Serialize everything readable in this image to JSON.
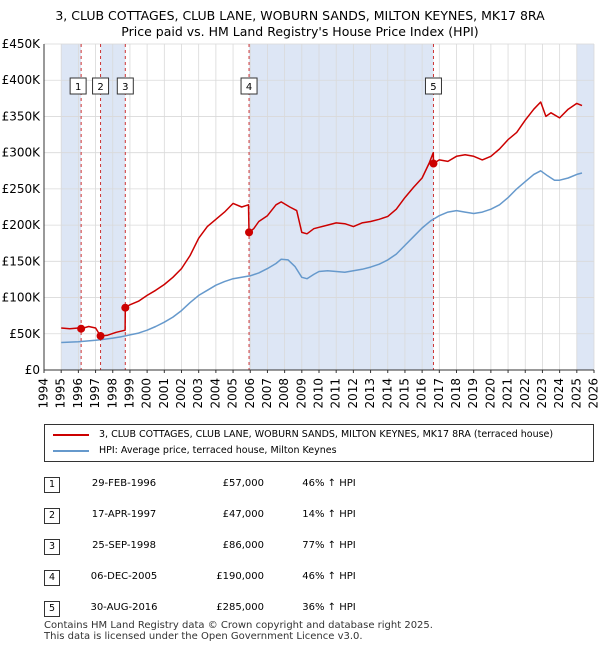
{
  "title_line1": "3, CLUB COTTAGES, CLUB LANE, WOBURN SANDS, MILTON KEYNES, MK17 8RA",
  "title_line2": "Price paid vs. HM Land Registry's House Price Index (HPI)",
  "colors": {
    "price_line": "#cc0000",
    "hpi_line": "#6699cc",
    "marker": "#cc0000",
    "shade": "#dde6f5",
    "vline": "#cc3333",
    "grid": "#d9d9d9"
  },
  "legend": {
    "price_label": "3, CLUB COTTAGES, CLUB LANE, WOBURN SANDS, MILTON KEYNES, MK17 8RA (terraced house)",
    "hpi_label": "HPI: Average price, terraced house, Milton Keynes"
  },
  "sales": [
    {
      "num": "1",
      "date": "29-FEB-1996",
      "price": "£57,000",
      "hpi": "46% ↑ HPI"
    },
    {
      "num": "2",
      "date": "17-APR-1997",
      "price": "£47,000",
      "hpi": "14% ↑ HPI"
    },
    {
      "num": "3",
      "date": "25-SEP-1998",
      "price": "£86,000",
      "hpi": "77% ↑ HPI"
    },
    {
      "num": "4",
      "date": "06-DEC-2005",
      "price": "£190,000",
      "hpi": "46% ↑ HPI"
    },
    {
      "num": "5",
      "date": "30-AUG-2016",
      "price": "£285,000",
      "hpi": "36% ↑ HPI"
    }
  ],
  "footer_line1": "Contains HM Land Registry data © Crown copyright and database right 2025.",
  "footer_line2": "This data is licensed under the Open Government Licence v3.0.",
  "chart_data": {
    "type": "line",
    "title": "3, CLUB COTTAGES, CLUB LANE, WOBURN SANDS, MILTON KEYNES, MK17 8RA",
    "subtitle": "Price paid vs. HM Land Registry's House Price Index (HPI)",
    "xlabel": "",
    "ylabel": "",
    "xlim": [
      1994,
      2026
    ],
    "ylim": [
      0,
      450000
    ],
    "y_ticks": [
      0,
      50000,
      100000,
      150000,
      200000,
      250000,
      300000,
      350000,
      400000,
      450000
    ],
    "y_tick_labels": [
      "£0",
      "£50K",
      "£100K",
      "£150K",
      "£200K",
      "£250K",
      "£300K",
      "£350K",
      "£400K",
      "£450K"
    ],
    "x_ticks": [
      1994,
      1995,
      1996,
      1997,
      1998,
      1999,
      2000,
      2001,
      2002,
      2003,
      2004,
      2005,
      2006,
      2007,
      2008,
      2009,
      2010,
      2011,
      2012,
      2013,
      2014,
      2015,
      2016,
      2017,
      2018,
      2019,
      2020,
      2021,
      2022,
      2023,
      2024,
      2025,
      2026
    ],
    "x_tick_labels": [
      "1994",
      "1995",
      "1996",
      "1997",
      "1998",
      "1999",
      "2000",
      "2001",
      "2002",
      "2003",
      "2004",
      "2005",
      "2006",
      "2007",
      "2008",
      "2009",
      "2010",
      "2011",
      "2012",
      "2013",
      "2014",
      "2015",
      "2016",
      "2017",
      "2018",
      "2019",
      "2020",
      "2021",
      "2022",
      "2023",
      "2024",
      "2025",
      "2026"
    ],
    "grid": true,
    "shaded_ranges": [
      [
        1995.0,
        1996.16
      ],
      [
        1997.29,
        1998.73
      ],
      [
        2005.93,
        2016.66
      ],
      [
        2025.0,
        2026.0
      ]
    ],
    "series": [
      {
        "name": "3, CLUB COTTAGES, CLUB LANE, WOBURN SANDS, MILTON KEYNES, MK17 8RA (terraced house)",
        "x": [
          1995.0,
          1995.5,
          1996.0,
          1996.16,
          1996.6,
          1997.0,
          1997.29,
          1997.7,
          1998.2,
          1998.72,
          1998.73,
          1999.0,
          1999.5,
          2000.0,
          2000.5,
          2001.0,
          2001.5,
          2002.0,
          2002.5,
          2003.0,
          2003.5,
          2004.0,
          2004.5,
          2005.0,
          2005.5,
          2005.9,
          2005.93,
          2006.2,
          2006.5,
          2007.0,
          2007.5,
          2007.8,
          2008.3,
          2008.7,
          2009.0,
          2009.3,
          2009.7,
          2010.0,
          2010.5,
          2011.0,
          2011.5,
          2012.0,
          2012.5,
          2013.0,
          2013.5,
          2014.0,
          2014.5,
          2015.0,
          2015.5,
          2016.0,
          2016.4,
          2016.65,
          2016.66,
          2017.0,
          2017.5,
          2018.0,
          2018.5,
          2019.0,
          2019.5,
          2020.0,
          2020.5,
          2021.0,
          2021.5,
          2022.0,
          2022.5,
          2022.9,
          2023.2,
          2023.5,
          2024.0,
          2024.5,
          2025.0,
          2025.3
        ],
        "values": [
          58000,
          57000,
          58000,
          57000,
          60000,
          58000,
          47000,
          48000,
          52000,
          55000,
          86000,
          90000,
          95000,
          103000,
          110000,
          118000,
          128000,
          140000,
          158000,
          182000,
          198000,
          208000,
          218000,
          230000,
          225000,
          228000,
          190000,
          195000,
          205000,
          213000,
          228000,
          232000,
          225000,
          220000,
          190000,
          188000,
          195000,
          197000,
          200000,
          203000,
          202000,
          198000,
          203000,
          205000,
          208000,
          212000,
          222000,
          238000,
          252000,
          265000,
          285000,
          300000,
          285000,
          290000,
          288000,
          295000,
          297000,
          295000,
          290000,
          295000,
          305000,
          318000,
          328000,
          345000,
          360000,
          370000,
          350000,
          355000,
          348000,
          360000,
          368000,
          365000
        ]
      },
      {
        "name": "HPI: Average price, terraced house, Milton Keynes",
        "x": [
          1995.0,
          1995.5,
          1996.0,
          1996.5,
          1997.0,
          1997.5,
          1998.0,
          1998.5,
          1999.0,
          1999.5,
          2000.0,
          2000.5,
          2001.0,
          2001.5,
          2002.0,
          2002.5,
          2003.0,
          2003.5,
          2004.0,
          2004.5,
          2005.0,
          2005.5,
          2006.0,
          2006.5,
          2007.0,
          2007.5,
          2007.8,
          2008.2,
          2008.6,
          2009.0,
          2009.3,
          2009.7,
          2010.0,
          2010.5,
          2011.0,
          2011.5,
          2012.0,
          2012.5,
          2013.0,
          2013.5,
          2014.0,
          2014.5,
          2015.0,
          2015.5,
          2016.0,
          2016.5,
          2017.0,
          2017.5,
          2018.0,
          2018.5,
          2019.0,
          2019.5,
          2020.0,
          2020.5,
          2021.0,
          2021.5,
          2022.0,
          2022.5,
          2022.9,
          2023.3,
          2023.7,
          2024.0,
          2024.5,
          2025.0,
          2025.3
        ],
        "values": [
          38000,
          38500,
          39000,
          40000,
          41000,
          42500,
          44000,
          46000,
          48500,
          51000,
          55000,
          60000,
          66000,
          73000,
          82000,
          93000,
          103000,
          110000,
          117000,
          122000,
          126000,
          128000,
          130000,
          134000,
          140000,
          147000,
          153000,
          152000,
          143000,
          128000,
          126000,
          132000,
          136000,
          137000,
          136000,
          135000,
          137000,
          139000,
          142000,
          146000,
          152000,
          160000,
          172000,
          184000,
          196000,
          206000,
          213000,
          218000,
          220000,
          218000,
          216000,
          218000,
          222000,
          228000,
          238000,
          250000,
          260000,
          270000,
          275000,
          268000,
          262000,
          262000,
          265000,
          270000,
          272000
        ]
      }
    ],
    "sale_markers": [
      {
        "label": "1",
        "x": 1996.16,
        "y": 57000
      },
      {
        "label": "2",
        "x": 1997.29,
        "y": 47000
      },
      {
        "label": "3",
        "x": 1998.73,
        "y": 86000
      },
      {
        "label": "4",
        "x": 2005.93,
        "y": 190000
      },
      {
        "label": "5",
        "x": 2016.66,
        "y": 285000
      }
    ]
  }
}
